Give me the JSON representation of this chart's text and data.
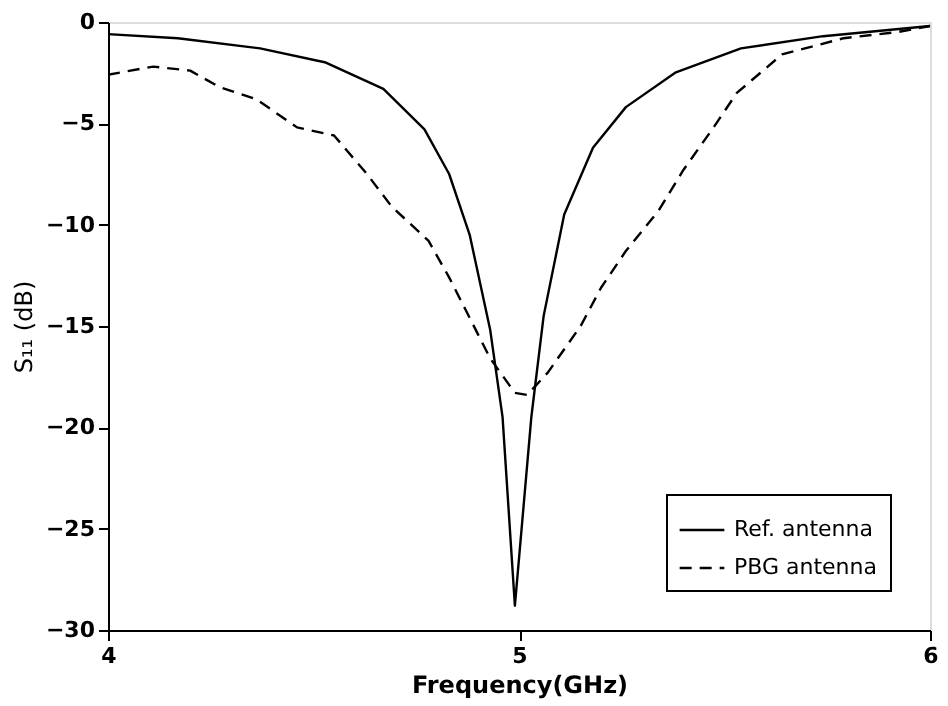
{
  "chart_data": {
    "type": "line",
    "xlabel": "Frequency(GHz)",
    "ylabel": "S₁₁ (dB)",
    "xlim": [
      4,
      6
    ],
    "xticks": [
      4,
      5,
      6
    ],
    "ylim": [
      -30,
      0
    ],
    "yticks": [
      -30,
      -25,
      -20,
      -15,
      -10,
      -5,
      0
    ],
    "grid": false,
    "legend": "bottom right",
    "marker": "none",
    "series": [
      {
        "name": "Ref. antenna",
        "color": "#000000",
        "line_style": "solid",
        "x": [
          4.0,
          4.17,
          4.37,
          4.53,
          4.67,
          4.77,
          4.83,
          4.88,
          4.93,
          4.96,
          4.99,
          5.03,
          5.06,
          5.11,
          5.18,
          5.26,
          5.38,
          5.54,
          5.74,
          6.0
        ],
        "values": [
          -0.6,
          -0.8,
          -1.3,
          -2.0,
          -3.3,
          -5.3,
          -7.5,
          -10.5,
          -15.2,
          -19.5,
          -28.8,
          -19.5,
          -14.5,
          -9.5,
          -6.2,
          -4.2,
          -2.5,
          -1.3,
          -0.7,
          -0.2
        ]
      },
      {
        "name": "PBG antenna",
        "color": "#000000",
        "line_style": "dashed",
        "x": [
          4.0,
          4.11,
          4.2,
          4.27,
          4.36,
          4.46,
          4.55,
          4.63,
          4.69,
          4.78,
          4.83,
          4.88,
          4.93,
          4.99,
          5.02,
          5.07,
          5.15,
          5.2,
          5.26,
          5.34,
          5.4,
          5.47,
          5.53,
          5.64,
          5.79,
          5.92,
          6.0
        ],
        "values": [
          -2.6,
          -2.2,
          -2.4,
          -3.2,
          -3.8,
          -5.2,
          -5.6,
          -7.5,
          -9.1,
          -10.8,
          -12.6,
          -14.6,
          -16.6,
          -18.3,
          -18.4,
          -17.3,
          -15.0,
          -13.1,
          -11.3,
          -9.3,
          -7.3,
          -5.3,
          -3.5,
          -1.6,
          -0.8,
          -0.5,
          -0.2
        ]
      }
    ]
  }
}
